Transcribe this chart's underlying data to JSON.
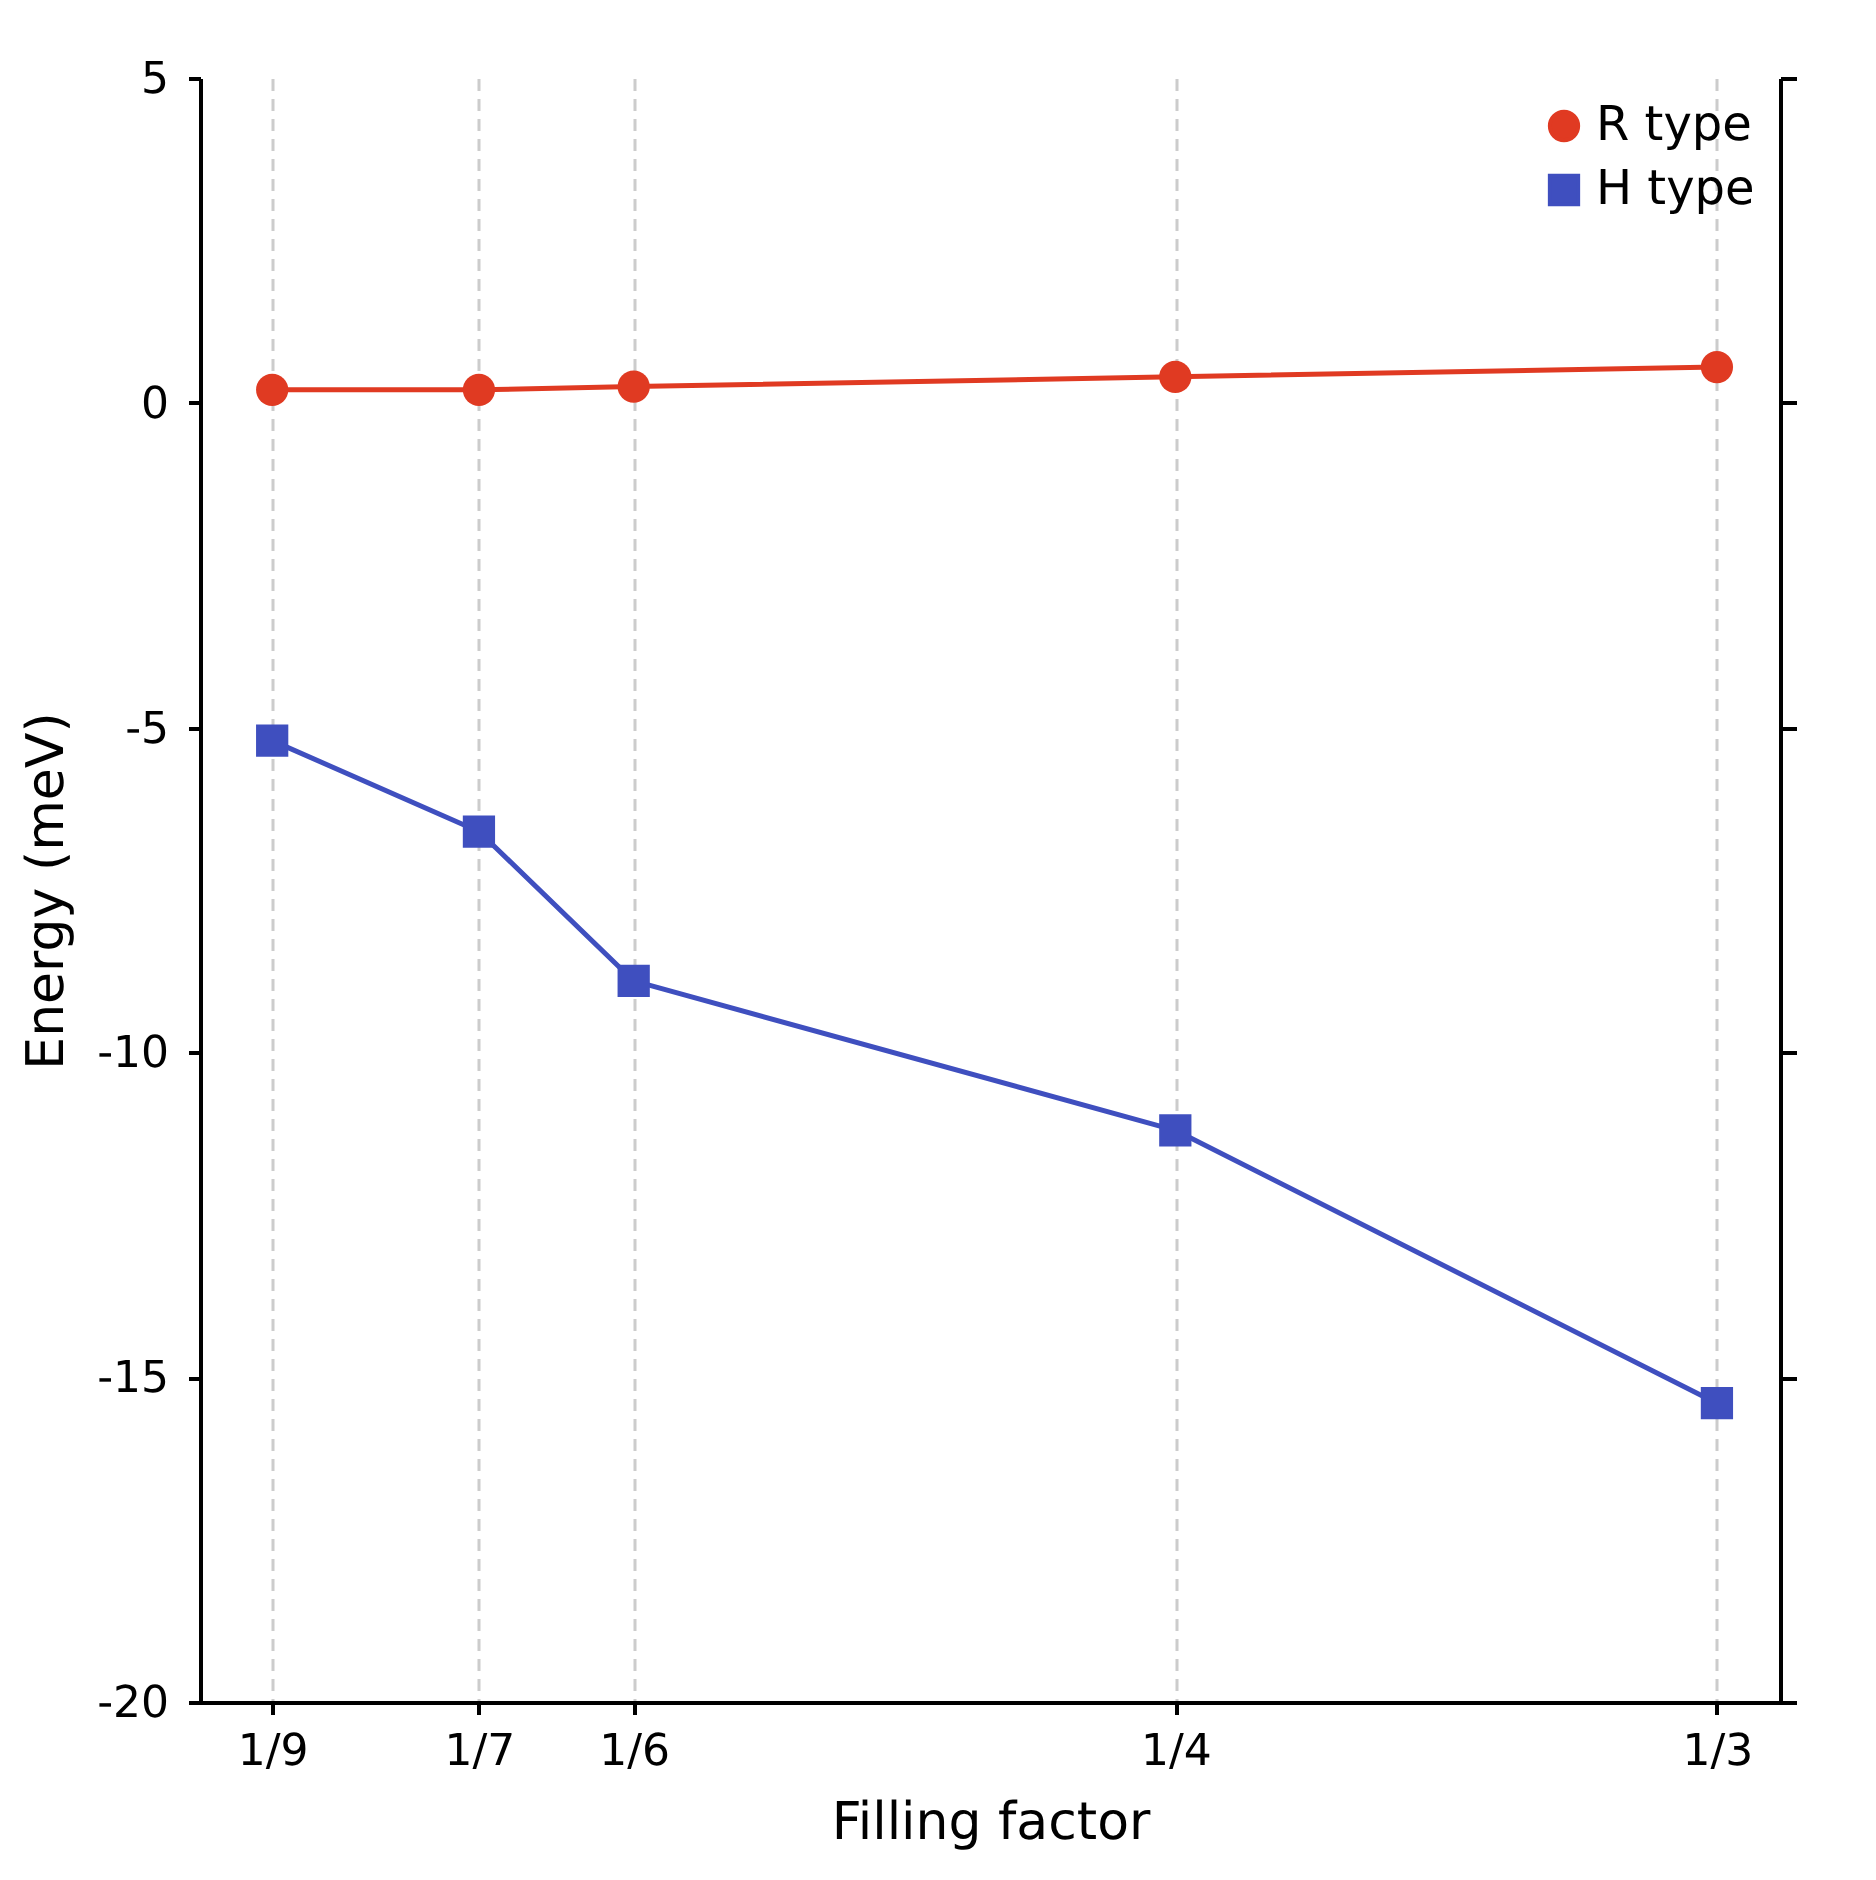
{
  "chart_data": {
    "type": "line",
    "xlabel": "Filling factor",
    "ylabel": "Energy (meV)",
    "x": [
      0.1111,
      0.1429,
      0.1667,
      0.25,
      0.3333
    ],
    "series": [
      {
        "name": "R type",
        "color": "#e03a22",
        "marker": "circle",
        "values": [
          0.2,
          0.2,
          0.25,
          0.4,
          0.55
        ]
      },
      {
        "name": "H type",
        "color": "#3f4fbf",
        "marker": "square",
        "values": [
          -5.2,
          -6.6,
          -8.9,
          -11.2,
          -15.4
        ]
      }
    ],
    "xlim": [
      0.1,
      0.343
    ],
    "xticks": [
      {
        "value": 0.1111,
        "label": "1/9"
      },
      {
        "value": 0.1429,
        "label": "1/7"
      },
      {
        "value": 0.1667,
        "label": "1/6"
      },
      {
        "value": 0.25,
        "label": "1/4"
      },
      {
        "value": 0.3333,
        "label": "1/3"
      }
    ],
    "ylim": [
      -20,
      5
    ],
    "yticks": [
      -20,
      -15,
      -10,
      -5,
      0,
      5
    ],
    "grid": "x",
    "legend": "top right",
    "line_style": "solid"
  }
}
